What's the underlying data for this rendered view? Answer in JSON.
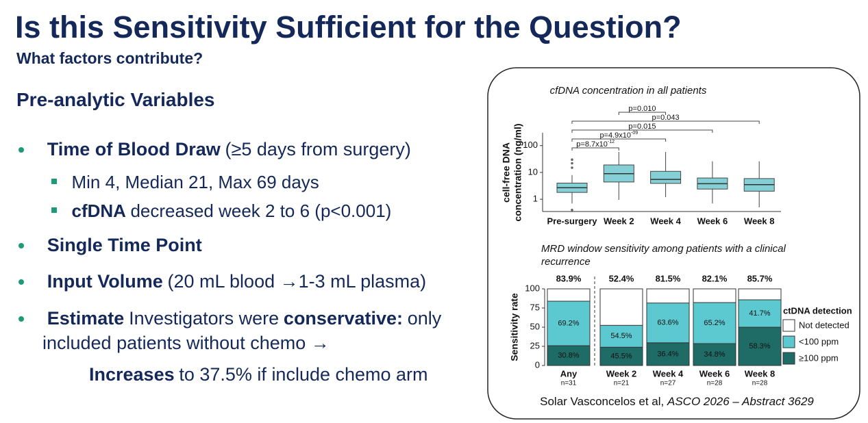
{
  "header": {
    "title": "Is this Sensitivity Sufficient for the Question?",
    "subtitle": "What factors contribute?"
  },
  "section": "Pre-analytic Variables",
  "bullets": [
    {
      "level": 1,
      "parts": [
        {
          "text": "Time of Blood Draw",
          "bold": true
        },
        {
          "text": "(≥5 days from surgery)",
          "bold": false
        }
      ]
    },
    {
      "level": 2,
      "parts": [
        {
          "text": "Min 4, Median 21, Max 69 days",
          "bold": false
        }
      ]
    },
    {
      "level": 2,
      "parts": [
        {
          "text": "cfDNA",
          "bold": true
        },
        {
          "text": "decreased week 2 to 6 (p<0.001)",
          "bold": false
        }
      ]
    },
    {
      "level": 1,
      "parts": [
        {
          "text": "Single Time Point",
          "bold": true
        }
      ]
    },
    {
      "level": 1,
      "parts": [
        {
          "text": "Input Volume",
          "bold": true
        },
        {
          "text": "(20 mL blood →1-3 mL plasma)",
          "bold": false
        }
      ]
    },
    {
      "level": 1,
      "parts": [
        {
          "text": "Estimate",
          "bold": true
        },
        {
          "text": "Investigators were",
          "bold": false
        },
        {
          "text": "conservative:",
          "bold": true
        },
        {
          "text": "only included patients without chemo →",
          "bold": false
        }
      ]
    }
  ],
  "note": [
    {
      "text": "Increases",
      "bold": true
    },
    {
      "text": "to 37.5% if include chemo arm",
      "bold": false
    }
  ],
  "chart_data": [
    {
      "type": "box",
      "title": "cfDNA concentration in all patients",
      "ylabel": [
        "cell-free DNA",
        "concentration (ng/ml)"
      ],
      "categories": [
        "Pre-surgery",
        "Week 2",
        "Week 4",
        "Week 6",
        "Week 8"
      ],
      "min": [
        0.7,
        0.95,
        1.2,
        0.7,
        0.5
      ],
      "q1": [
        1.8,
        4.4,
        3.9,
        2.4,
        2.0
      ],
      "median": [
        2.7,
        9,
        5.5,
        3.8,
        3.5
      ],
      "q3": [
        4,
        19,
        11,
        6.2,
        5.9
      ],
      "max": [
        8,
        58,
        58,
        26,
        26
      ],
      "outliers": [
        [
          0.4,
          15,
          22,
          30
        ],
        [],
        [],
        [],
        []
      ],
      "color": "#84d0d6",
      "log_y": true,
      "ylim": [
        0.35,
        300
      ],
      "yticks": [
        1,
        10,
        100
      ],
      "comparisons": [
        {
          "between": [
            "Week 2",
            "Week 4"
          ],
          "label": "p=0.010"
        },
        {
          "between": [
            "Pre-surgery",
            "Week 8"
          ],
          "label": "p=0.043"
        },
        {
          "between": [
            "Pre-surgery",
            "Week 6"
          ],
          "label": "p=0.015"
        },
        {
          "between": [
            "Pre-surgery",
            "Week 4"
          ],
          "label": "p=4.9x10",
          "exponent": "-09"
        },
        {
          "between": [
            "Pre-surgery",
            "Week 2"
          ],
          "label": "p=8.7x10",
          "exponent": "-12"
        }
      ]
    },
    {
      "type": "stacked_bar",
      "title": "MRD window sensitivity among patients with a clinical recurrence",
      "ylabel": "Sensitivity rate",
      "categories": [
        "Any",
        "Week 2",
        "Week 4",
        "Week 6",
        "Week 8"
      ],
      "n_labels": [
        "n=31",
        "n=21",
        "n=27",
        "n=28",
        "n=28"
      ],
      "values": [
        83.9,
        52.4,
        81.5,
        82.1,
        85.7
      ],
      "value_labels": [
        "83.9%",
        "52.4%",
        "81.5%",
        "82.1%",
        "85.7%"
      ],
      "legend_title": "ctDNA detection",
      "series": [
        {
          "name": "Not detected",
          "color": "#ffffff"
        },
        {
          "name": "<100 ppm",
          "color": "#5cc8cf",
          "values": [
            69.2,
            54.5,
            63.6,
            65.2,
            41.7
          ],
          "value_labels": [
            "69.2%",
            "54.5%",
            "63.6%",
            "65.2%",
            "41.7%"
          ]
        },
        {
          "name": "≥100 ppm",
          "color": "#1f6b66",
          "values": [
            30.8,
            45.5,
            36.4,
            34.8,
            58.3
          ],
          "value_labels": [
            "30.8%",
            "45.5%",
            "36.4%",
            "34.8%",
            "58.3%"
          ]
        }
      ],
      "ylim": [
        0,
        100
      ],
      "yticks": [
        0,
        25,
        50,
        75,
        100
      ]
    }
  ],
  "citation": {
    "authors": "Solar Vasconcelos et al,",
    "source": "ASCO 2026 – Abstract 3629"
  }
}
